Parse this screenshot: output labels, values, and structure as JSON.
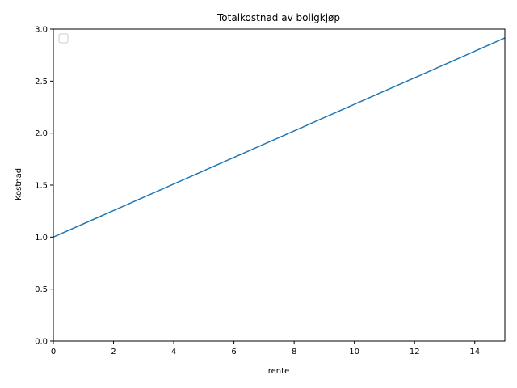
{
  "chart_data": {
    "type": "line",
    "title": "Totalkostnad av boligkjøp",
    "xlabel": "rente",
    "ylabel": "Kostnad",
    "xlim": [
      0,
      15
    ],
    "ylim": [
      0,
      3.0
    ],
    "xticks": [
      "0",
      "2",
      "4",
      "6",
      "8",
      "10",
      "12",
      "14"
    ],
    "yticks": [
      "0.0",
      "0.5",
      "1.0",
      "1.5",
      "2.0",
      "2.5",
      "3.0"
    ],
    "grid": false,
    "legend_position": "upper-left",
    "line_color": "#1f77b4",
    "series": [
      {
        "x": [
          0,
          15
        ],
        "y": [
          1.0,
          2.915
        ]
      }
    ]
  }
}
